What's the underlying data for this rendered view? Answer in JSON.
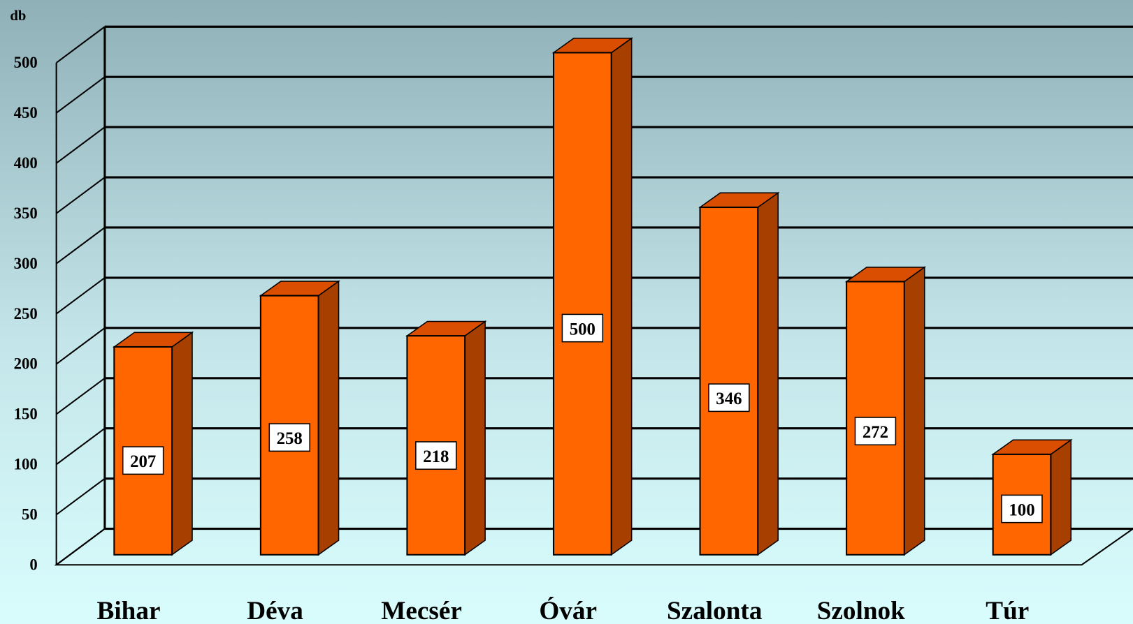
{
  "chart_data": {
    "type": "bar3d",
    "y_label": "db",
    "categories": [
      "Bihar",
      "Déva",
      "Mecsér",
      "Óvár",
      "Szalonta",
      "Szolnok",
      "Túr"
    ],
    "values": [
      207,
      258,
      218,
      500,
      346,
      272,
      100
    ],
    "color": "#ff6600",
    "ylim": [
      0,
      500
    ],
    "yticks": [
      0,
      50,
      100,
      150,
      200,
      250,
      300,
      350,
      400,
      450,
      500
    ],
    "grid": true
  }
}
